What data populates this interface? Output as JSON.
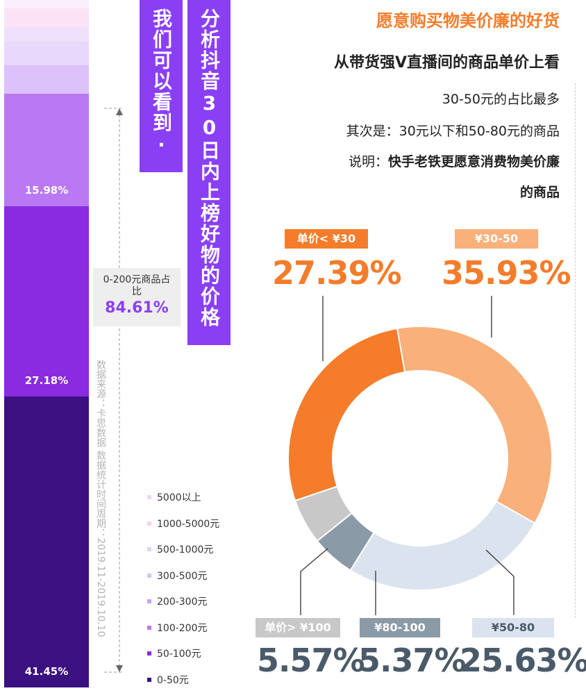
{
  "header": {
    "title": "愿意购买物美价廉的好货",
    "subtitle": "从带货强V直播间的商品单价上看",
    "notes": [
      "30-50元的占比最多",
      "其次是：30元以下和50-80元的商品"
    ],
    "explain_prefix": "说明：",
    "explain_bold": "快手老铁更愿意消费物美价廉",
    "explain_tail": "的商品"
  },
  "banners": {
    "line1": "我们可以看到·",
    "line2": "分析抖音30日内上榜好物的价格"
  },
  "summary": {
    "label": "0-200元商品占比",
    "value": "84.61%"
  },
  "source_note": "数据来源：卡思数据 数据统计时间周期：2019.11-2019.10.10",
  "chart_data": [
    {
      "type": "bar",
      "stacked": true,
      "categories": [
        "5000以上",
        "1000-5000元",
        "500-1000元",
        "300-500元",
        "200-300元",
        "100-200元",
        "50-100元",
        "0-50元"
      ],
      "values": [
        1.2,
        2.7,
        2.0,
        3.4,
        4.1,
        15.98,
        27.18,
        41.45
      ],
      "labels": [
        "",
        "",
        "",
        "",
        "",
        "15.98%",
        "27.18%",
        "41.45%"
      ],
      "colors": [
        "#f9effd",
        "#fbe3f5",
        "#efe1fc",
        "#e8d8fc",
        "#dcc1fa",
        "#b979f4",
        "#8a2be2",
        "#3b1080"
      ],
      "legend": [
        {
          "label": "5000以上",
          "color": "#f3d6f7"
        },
        {
          "label": "1000-5000元",
          "color": "#f7cfee"
        },
        {
          "label": "500-1000元",
          "color": "#e6d0fa"
        },
        {
          "label": "300-500元",
          "color": "#d9c0f8"
        },
        {
          "label": "200-300元",
          "color": "#c9a2f4"
        },
        {
          "label": "100-200元",
          "color": "#b979f4"
        },
        {
          "label": "50-100元",
          "color": "#8a2be2"
        },
        {
          "label": "0-50元",
          "color": "#3b1080"
        }
      ]
    },
    {
      "type": "pie",
      "donut": true,
      "slices": [
        {
          "label": "单价< ¥30",
          "value": 27.39,
          "display": "27.39%",
          "color": "#f47c2a",
          "value_color": "#f47c2a",
          "label_bg": "#f47c2a"
        },
        {
          "label": "¥30-50",
          "value": 35.93,
          "display": "35.93%",
          "color": "#f9b07a",
          "value_color": "#f47c2a",
          "label_bg": "#f9b07a"
        },
        {
          "label": "¥50-80",
          "value": 25.63,
          "display": "25.63%",
          "color": "#dbe3ef",
          "value_color": "#4a5a68",
          "label_bg": "#dbe3ef"
        },
        {
          "label": "¥80-100",
          "value": 5.37,
          "display": "5.37%",
          "color": "#8a9aa6",
          "value_color": "#4a5a68",
          "label_bg": "#8a9aa6"
        },
        {
          "label": "单价> ¥100",
          "value": 5.57,
          "display": "5.57%",
          "color": "#c8c8c8",
          "value_color": "#4a5a68",
          "label_bg": "#c8c8c8"
        }
      ]
    }
  ]
}
